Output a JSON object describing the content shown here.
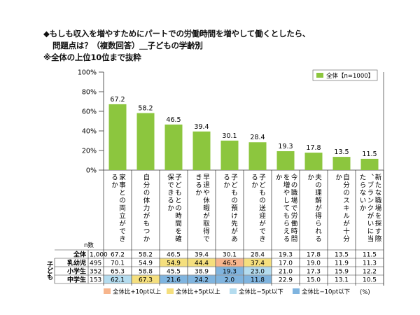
{
  "titles": {
    "line1": "◆もしも収入を増やすためにパートでの労働時間を増やして働くとしたら、",
    "line2": "問題点は？（複数回答）＿子どもの学齢別",
    "line3": "※全体の上位10位まで抜粋"
  },
  "chart_data": {
    "type": "bar",
    "ylim": [
      0,
      100
    ],
    "y_ticks": [
      "0%",
      "20%",
      "40%",
      "60%",
      "80%",
      "100%"
    ],
    "legend": "全体【n=1000】",
    "legend_position": "top-right",
    "bar_color": "#8cc63e",
    "categories": [
      "家事との両立ができるか",
      "自分の体力がもつか",
      "子どもとの時間を確保できるか",
      "早退や休暇が取得できるか",
      "子どもの預け先があるか",
      "子どもの送迎ができるか",
      "今の職場で労働時間を増やしてもらえるか",
      "夫の理解が得られるか",
      "自分のスキルが十分か",
      "新たな職場を探す際、ブランクがいに当たらないか"
    ],
    "values": [
      67.2,
      58.2,
      46.5,
      39.4,
      30.1,
      28.4,
      19.3,
      17.8,
      13.5,
      11.5
    ],
    "value_labels": [
      "67.2",
      "58.2",
      "46.5",
      "39.4",
      "30.1",
      "28.4",
      "19.3",
      "17.8",
      "13.5",
      "11.5"
    ],
    "table": {
      "n_header": "n数",
      "group_label": "子ども",
      "rows": [
        {
          "label": "全体",
          "n": "1,000",
          "values": [
            "67.2",
            "58.2",
            "46.5",
            "39.4",
            "30.1",
            "28.4",
            "19.3",
            "17.8",
            "13.5",
            "11.5"
          ],
          "highlight": [
            "",
            "",
            "",
            "",
            "",
            "",
            "",
            "",
            "",
            ""
          ]
        },
        {
          "label": "乳幼児",
          "n": "495",
          "values": [
            "70.1",
            "54.9",
            "54.9",
            "44.4",
            "46.5",
            "37.4",
            "17.0",
            "19.0",
            "11.9",
            "11.3"
          ],
          "highlight": [
            "",
            "",
            "p5",
            "p5",
            "p10",
            "p5",
            "",
            "",
            "",
            ""
          ]
        },
        {
          "label": "小学生",
          "n": "352",
          "values": [
            "65.3",
            "58.8",
            "45.5",
            "38.9",
            "19.3",
            "23.0",
            "21.0",
            "17.3",
            "15.9",
            "12.2"
          ],
          "highlight": [
            "",
            "",
            "",
            "",
            "m10",
            "m5",
            "",
            "",
            "",
            ""
          ]
        },
        {
          "label": "中学生",
          "n": "153",
          "values": [
            "62.1",
            "67.3",
            "21.6",
            "24.2",
            "2.0",
            "11.8",
            "22.9",
            "15.0",
            "13.1",
            "10.5"
          ],
          "highlight": [
            "m5",
            "p5",
            "m10",
            "m10",
            "m10",
            "m10",
            "",
            "",
            "",
            ""
          ]
        }
      ]
    },
    "highlight_legend": [
      {
        "key": "p10",
        "label": "全体比+10pt以上",
        "color": "#f7b58d"
      },
      {
        "key": "p5",
        "label": "全体比+5pt以上",
        "color": "#f5df7e"
      },
      {
        "key": "m5",
        "label": "全体比−5pt以下",
        "color": "#b4dcef"
      },
      {
        "key": "m10",
        "label": "全体比−10pt以下",
        "color": "#7fb4df"
      }
    ],
    "unit": "(%)"
  }
}
